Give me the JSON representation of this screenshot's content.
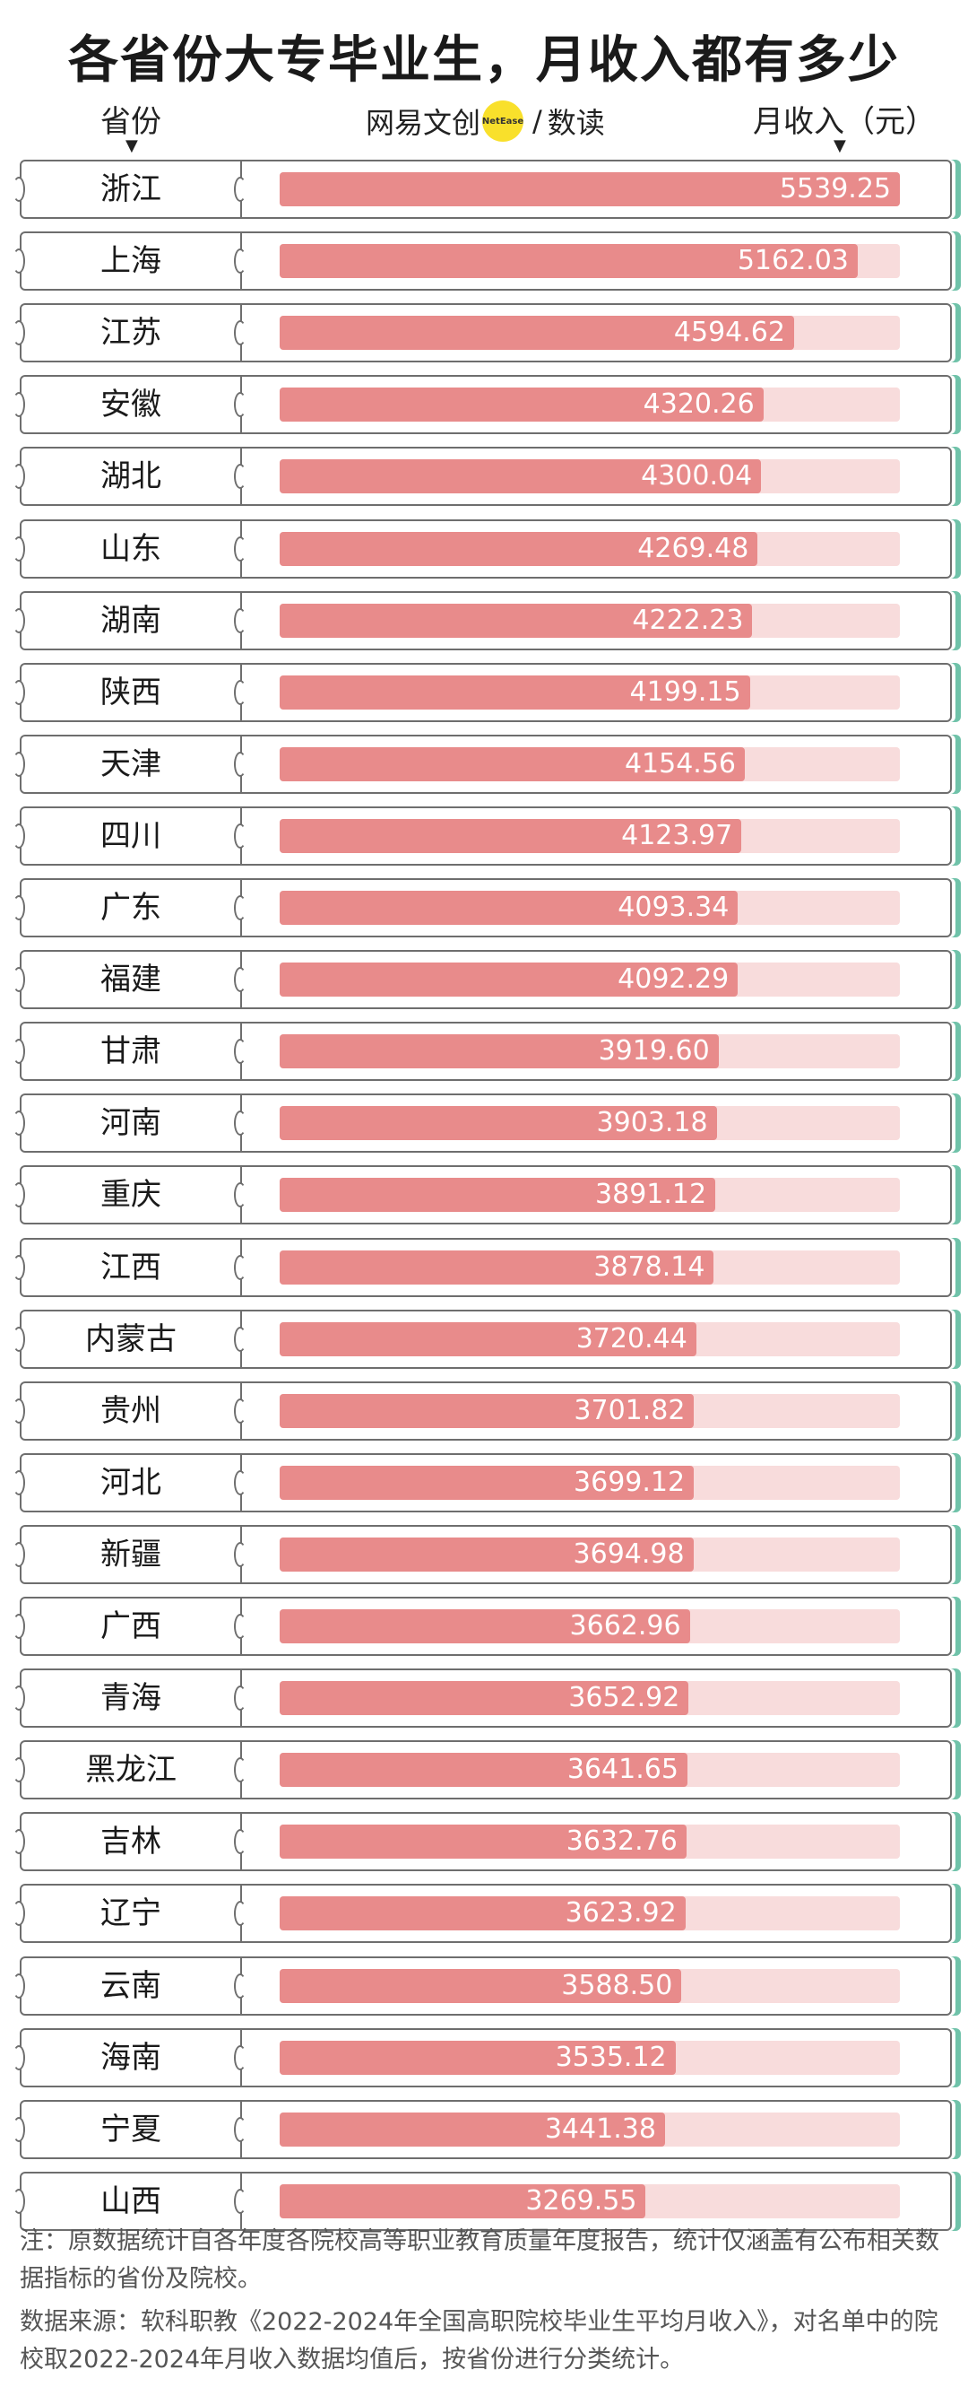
{
  "header": {
    "title": "各省份大专毕业生，月收入都有多少",
    "left_label": "省份",
    "right_label": "月收入（元）",
    "brand_a": "网易文创",
    "brand_dot": "NetEase",
    "brand_sep": "/",
    "brand_b": "数读"
  },
  "colors": {
    "bar": "#e88b8b",
    "track": "#f8dcdc",
    "accent": "#6fc2a9"
  },
  "chart_data": {
    "type": "bar",
    "orientation": "horizontal",
    "title": "各省份大专毕业生，月收入都有多少",
    "xlabel": "省份",
    "ylabel": "月收入（元）",
    "ylim": [
      0,
      5539.25
    ],
    "categories": [
      "浙江",
      "上海",
      "江苏",
      "安徽",
      "湖北",
      "山东",
      "湖南",
      "陕西",
      "天津",
      "四川",
      "广东",
      "福建",
      "甘肃",
      "河南",
      "重庆",
      "江西",
      "内蒙古",
      "贵州",
      "河北",
      "新疆",
      "广西",
      "青海",
      "黑龙江",
      "吉林",
      "辽宁",
      "云南",
      "海南",
      "宁夏",
      "山西"
    ],
    "values": [
      5539.25,
      5162.03,
      4594.62,
      4320.26,
      4300.04,
      4269.48,
      4222.23,
      4199.15,
      4154.56,
      4123.97,
      4093.34,
      4092.29,
      3919.6,
      3903.18,
      3891.12,
      3878.14,
      3720.44,
      3701.82,
      3699.12,
      3694.98,
      3662.96,
      3652.92,
      3641.65,
      3632.76,
      3623.92,
      3588.5,
      3535.12,
      3441.38,
      3269.55
    ],
    "labels": [
      "5539.25",
      "5162.03",
      "4594.62",
      "4320.26",
      "4300.04",
      "4269.48",
      "4222.23",
      "4199.15",
      "4154.56",
      "4123.97",
      "4093.34",
      "4092.29",
      "3919.60",
      "3903.18",
      "3891.12",
      "3878.14",
      "3720.44",
      "3701.82",
      "3699.12",
      "3694.98",
      "3662.96",
      "3652.92",
      "3641.65",
      "3632.76",
      "3623.92",
      "3588.50",
      "3535.12",
      "3441.38",
      "3269.55"
    ]
  },
  "footer": {
    "note": "注：原数据统计自各年度各院校高等职业教育质量年度报告，统计仅涵盖有公布相关数据指标的省份及院校。",
    "source": "数据来源：软科职教《2022-2024年全国高职院校毕业生平均月收入》，对名单中的院校取2022-2024年月收入数据均值后，按省份进行分类统计。"
  }
}
